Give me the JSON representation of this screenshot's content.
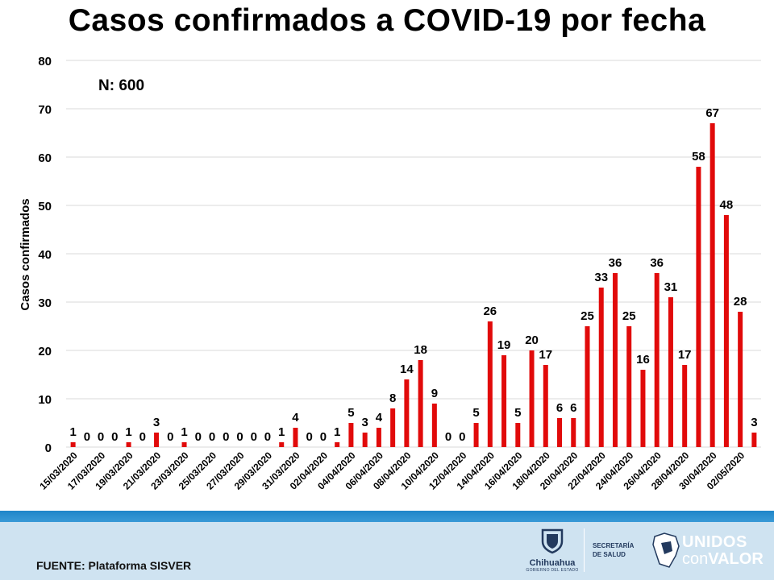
{
  "title": "Casos confirmados a COVID-19 por fecha",
  "chart_data": {
    "type": "bar",
    "annotation": "N: 600",
    "ylabel": "Casos confirmados",
    "ylim": [
      0,
      80
    ],
    "yticks": [
      0,
      10,
      20,
      30,
      40,
      50,
      60,
      70,
      80
    ],
    "grid": true,
    "bar_color": "#e10a0a",
    "categories": [
      "15/03/2020",
      "16/03/2020",
      "17/03/2020",
      "18/03/2020",
      "19/03/2020",
      "20/03/2020",
      "21/03/2020",
      "22/03/2020",
      "23/03/2020",
      "24/03/2020",
      "25/03/2020",
      "26/03/2020",
      "27/03/2020",
      "28/03/2020",
      "29/03/2020",
      "30/03/2020",
      "31/03/2020",
      "01/04/2020",
      "02/04/2020",
      "03/04/2020",
      "04/04/2020",
      "05/04/2020",
      "06/04/2020",
      "07/04/2020",
      "08/04/2020",
      "09/04/2020",
      "10/04/2020",
      "11/04/2020",
      "12/04/2020",
      "13/04/2020",
      "14/04/2020",
      "15/04/2020",
      "16/04/2020",
      "17/04/2020",
      "18/04/2020",
      "19/04/2020",
      "20/04/2020",
      "21/04/2020",
      "22/04/2020",
      "23/04/2020",
      "24/04/2020",
      "25/04/2020",
      "26/04/2020",
      "27/04/2020",
      "28/04/2020",
      "29/04/2020",
      "30/04/2020",
      "01/05/2020",
      "02/05/2020",
      "03/05/2020"
    ],
    "visible_tick_labels": [
      "15/03/2020",
      "17/03/2020",
      "19/03/2020",
      "21/03/2020",
      "23/03/2020",
      "25/03/2020",
      "27/03/2020",
      "29/03/2020",
      "31/03/2020",
      "02/04/2020",
      "04/04/2020",
      "06/04/2020",
      "08/04/2020",
      "10/04/2020",
      "12/04/2020",
      "14/04/2020",
      "16/04/2020",
      "18/04/2020",
      "20/04/2020",
      "22/04/2020",
      "24/04/2020",
      "26/04/2020",
      "28/04/2020",
      "30/04/2020",
      "02/05/2020"
    ],
    "values": [
      1,
      0,
      0,
      0,
      1,
      0,
      3,
      0,
      1,
      0,
      0,
      0,
      0,
      0,
      0,
      1,
      4,
      0,
      0,
      1,
      5,
      3,
      4,
      8,
      14,
      18,
      9,
      0,
      0,
      5,
      26,
      19,
      5,
      20,
      17,
      6,
      6,
      25,
      33,
      36,
      25,
      16,
      36,
      31,
      17,
      58,
      67,
      48,
      28,
      3
    ]
  },
  "footer": {
    "source": "FUENTE: Plataforma SISVER",
    "logo_state": "Chihuahua",
    "logo_state_sub": "GOBIERNO DEL ESTADO",
    "secretaria_line1": "SECRETARÍA",
    "secretaria_line2": "DE SALUD",
    "slogan_line1": "UNIDOS",
    "slogan_con": "con",
    "slogan_valor": "VALOR"
  },
  "colors": {
    "band": "#1f86c8",
    "footer_bg": "#cfe3f1",
    "logo_dark": "#233a5e"
  }
}
